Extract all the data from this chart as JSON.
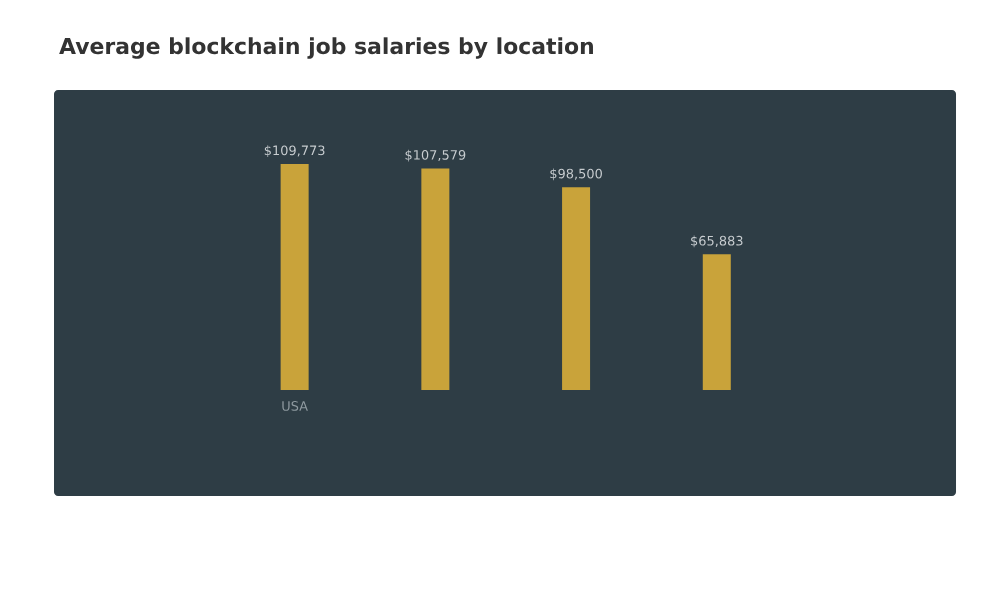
{
  "chart_data": {
    "type": "bar",
    "title": "Average blockchain job salaries by location",
    "categories": [
      "USA",
      null,
      null,
      null
    ],
    "values": [
      109773,
      107579,
      98500,
      65883
    ],
    "value_labels": [
      "$109,773",
      "$107,579",
      "$98,500",
      "$65,883"
    ],
    "color": "#c9a33a"
  }
}
